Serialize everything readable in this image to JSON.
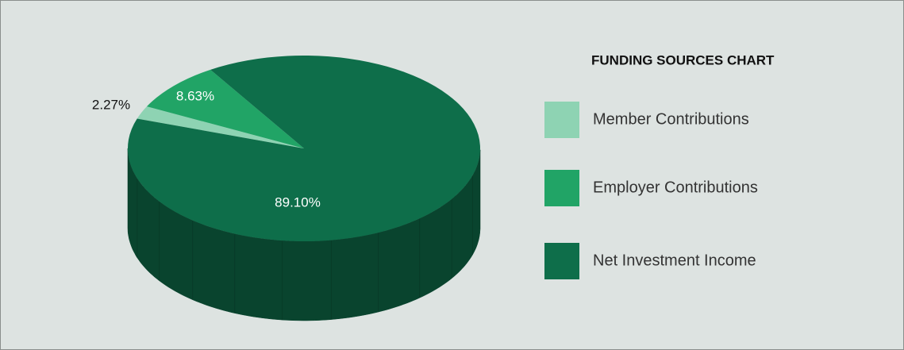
{
  "chart_data": {
    "type": "pie",
    "title": "FUNDING SOURCES CHART",
    "categories": [
      "Member Contributions",
      "Employer Contributions",
      "Net Investment Income"
    ],
    "values": [
      2.27,
      8.63,
      89.1
    ],
    "value_labels": [
      "2.27%",
      "8.63%",
      "89.10%"
    ],
    "colors": [
      "#8ed3b3",
      "#21a466",
      "#0e6e4a"
    ],
    "legend": "right"
  }
}
